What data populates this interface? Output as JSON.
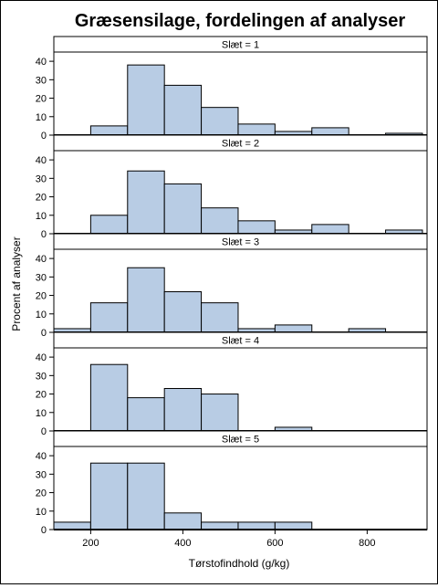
{
  "chart_data": {
    "type": "bar",
    "title": "Græsensilage, fordelingen af analyser",
    "xlabel": "Tørstofindhold (g/kg)",
    "ylabel": "Procent af analyser",
    "xlim": [
      120,
      930
    ],
    "ylim": [
      0,
      45
    ],
    "bin_width": 80,
    "x_ticks": [
      200,
      400,
      600,
      800
    ],
    "y_ticks": [
      0,
      10,
      20,
      30,
      40
    ],
    "colors": {
      "bar_fill": "#b8cce4",
      "bar_stroke": "#000000",
      "strip_fill": "#ffffff"
    },
    "panels": [
      {
        "label": "Slæt = 1",
        "bins": [
          {
            "x0": 200,
            "x1": 280,
            "value": 5
          },
          {
            "x0": 280,
            "x1": 360,
            "value": 38
          },
          {
            "x0": 360,
            "x1": 440,
            "value": 27
          },
          {
            "x0": 440,
            "x1": 520,
            "value": 15
          },
          {
            "x0": 520,
            "x1": 600,
            "value": 6
          },
          {
            "x0": 600,
            "x1": 680,
            "value": 2
          },
          {
            "x0": 680,
            "x1": 760,
            "value": 4
          },
          {
            "x0": 840,
            "x1": 920,
            "value": 1
          }
        ]
      },
      {
        "label": "Slæt = 2",
        "bins": [
          {
            "x0": 200,
            "x1": 280,
            "value": 10
          },
          {
            "x0": 280,
            "x1": 360,
            "value": 34
          },
          {
            "x0": 360,
            "x1": 440,
            "value": 27
          },
          {
            "x0": 440,
            "x1": 520,
            "value": 14
          },
          {
            "x0": 520,
            "x1": 600,
            "value": 7
          },
          {
            "x0": 600,
            "x1": 680,
            "value": 2
          },
          {
            "x0": 680,
            "x1": 760,
            "value": 5
          },
          {
            "x0": 840,
            "x1": 920,
            "value": 2
          }
        ]
      },
      {
        "label": "Slæt = 3",
        "bins": [
          {
            "x0": 120,
            "x1": 200,
            "value": 2
          },
          {
            "x0": 200,
            "x1": 280,
            "value": 16
          },
          {
            "x0": 280,
            "x1": 360,
            "value": 35
          },
          {
            "x0": 360,
            "x1": 440,
            "value": 22
          },
          {
            "x0": 440,
            "x1": 520,
            "value": 16
          },
          {
            "x0": 520,
            "x1": 600,
            "value": 2
          },
          {
            "x0": 600,
            "x1": 680,
            "value": 4
          },
          {
            "x0": 760,
            "x1": 840,
            "value": 2
          }
        ]
      },
      {
        "label": "Slæt = 4",
        "bins": [
          {
            "x0": 200,
            "x1": 280,
            "value": 36
          },
          {
            "x0": 280,
            "x1": 360,
            "value": 18
          },
          {
            "x0": 360,
            "x1": 440,
            "value": 23
          },
          {
            "x0": 440,
            "x1": 520,
            "value": 20
          },
          {
            "x0": 600,
            "x1": 680,
            "value": 2
          }
        ]
      },
      {
        "label": "Slæt = 5",
        "bins": [
          {
            "x0": 120,
            "x1": 200,
            "value": 4
          },
          {
            "x0": 200,
            "x1": 280,
            "value": 36
          },
          {
            "x0": 280,
            "x1": 360,
            "value": 36
          },
          {
            "x0": 360,
            "x1": 440,
            "value": 9
          },
          {
            "x0": 440,
            "x1": 520,
            "value": 4
          },
          {
            "x0": 520,
            "x1": 600,
            "value": 4
          },
          {
            "x0": 600,
            "x1": 680,
            "value": 4
          }
        ]
      }
    ]
  }
}
